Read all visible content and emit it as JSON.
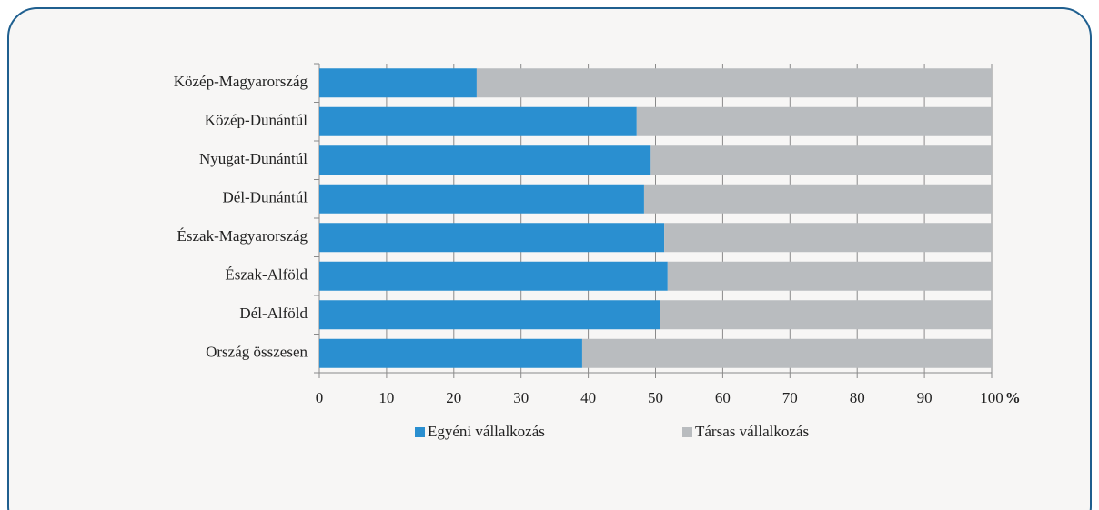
{
  "chart_data": {
    "type": "stacked_barh",
    "categories": [
      "Közép-Magyarország",
      "Közép-Dunántúl",
      "Nyugat-Dunántúl",
      "Dél-Dunántúl",
      "Észak-Magyarország",
      "Észak-Alföld",
      "Dél-Alföld",
      "Ország összesen"
    ],
    "series": [
      {
        "name": "Egyéni vállalkozás",
        "color": "#2a8fd0",
        "values": [
          23.4,
          47.2,
          49.3,
          48.3,
          51.3,
          51.8,
          50.7,
          39.1
        ]
      },
      {
        "name": "Társas vállalkozás",
        "color": "#b9bcbf",
        "values": [
          76.6,
          52.8,
          50.7,
          51.7,
          48.7,
          48.2,
          49.3,
          60.9
        ]
      }
    ],
    "xlim": [
      0,
      100
    ],
    "xticks": [
      0,
      10,
      20,
      30,
      40,
      50,
      60,
      70,
      80,
      90,
      100
    ],
    "x_axis_label": "%",
    "grid": true,
    "legend": "bottom"
  }
}
